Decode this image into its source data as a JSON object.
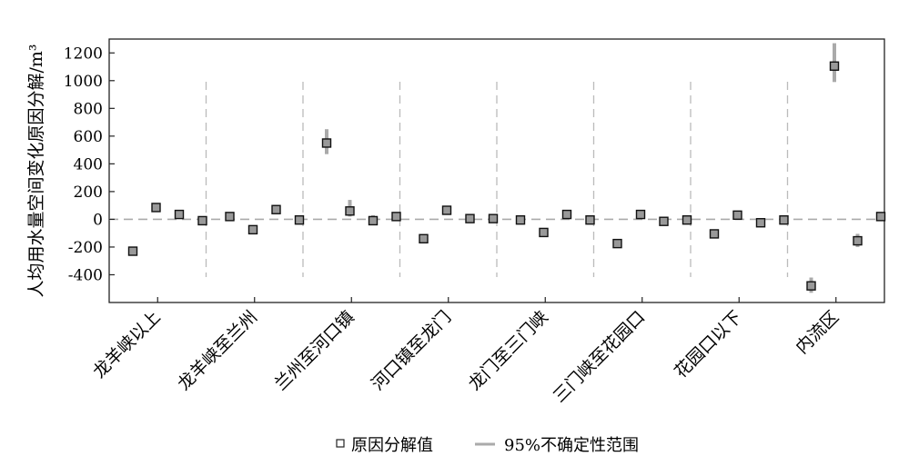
{
  "chart_data": {
    "type": "scatter",
    "ylabel": "人均用水量空间变化原因分解/m³",
    "xlabel": "",
    "ylim": [
      -600,
      1300
    ],
    "yticks": [
      -400,
      -200,
      0,
      200,
      400,
      600,
      800,
      1000,
      1200
    ],
    "categories": [
      "龙羊峡以上",
      "龙羊峡至兰州",
      "兰州至河口镇",
      "河口镇至龙门",
      "龙门至三门峡",
      "三门峡至花园口",
      "花园口以下",
      "内流区"
    ],
    "points_per_category": 4,
    "series": [
      {
        "name": "原因分解值",
        "values": [
          [
            -230,
            85,
            35,
            -10
          ],
          [
            20,
            -75,
            70,
            -5
          ],
          [
            550,
            60,
            -10,
            20
          ],
          [
            -140,
            65,
            5,
            5
          ],
          [
            -5,
            -95,
            35,
            -5
          ],
          [
            -175,
            35,
            -15,
            -5
          ],
          [
            -105,
            30,
            -25,
            -5
          ],
          [
            -480,
            1105,
            -155,
            20
          ]
        ]
      },
      {
        "name": "95%不确定性范围",
        "ranges": [
          [
            [
              -255,
              -205
            ],
            [
              65,
              110
            ],
            [
              20,
              50
            ],
            [
              -20,
              0
            ]
          ],
          [
            [
              5,
              40
            ],
            [
              -95,
              -55
            ],
            [
              55,
              85
            ],
            [
              -15,
              5
            ]
          ],
          [
            [
              470,
              650
            ],
            [
              20,
              140
            ],
            [
              -35,
              30
            ],
            [
              10,
              30
            ]
          ],
          [
            [
              -160,
              -120
            ],
            [
              45,
              90
            ],
            [
              -5,
              15
            ],
            [
              -5,
              15
            ]
          ],
          [
            [
              -20,
              15
            ],
            [
              -110,
              -80
            ],
            [
              15,
              50
            ],
            [
              -15,
              5
            ]
          ],
          [
            [
              -195,
              -155
            ],
            [
              15,
              55
            ],
            [
              -30,
              0
            ],
            [
              -15,
              5
            ]
          ],
          [
            [
              -125,
              -85
            ],
            [
              10,
              50
            ],
            [
              -40,
              -10
            ],
            [
              -15,
              5
            ]
          ],
          [
            [
              -530,
              -420
            ],
            [
              990,
              1270
            ],
            [
              -200,
              -105
            ],
            [
              5,
              35
            ]
          ]
        ]
      }
    ],
    "grid": false,
    "legend": "bottom-center"
  }
}
